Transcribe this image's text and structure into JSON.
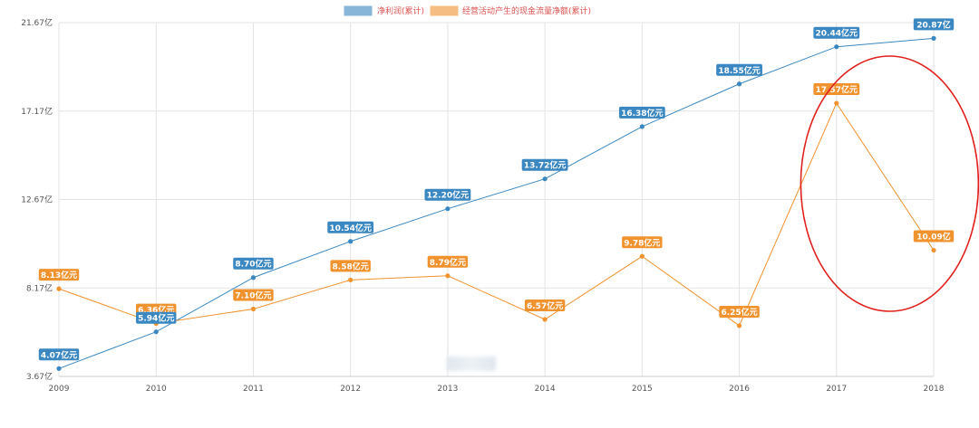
{
  "chart_data": {
    "type": "line",
    "title": "",
    "xlabel": "",
    "ylabel": "",
    "categories": [
      "2009",
      "2010",
      "2011",
      "2012",
      "2013",
      "2014",
      "2015",
      "2016",
      "2017",
      "2018"
    ],
    "y_ticks": [
      "3.67亿",
      "8.17亿",
      "12.67亿",
      "17.17亿",
      "21.67亿"
    ],
    "y_tick_values": [
      3.67,
      8.17,
      12.67,
      17.17,
      21.67
    ],
    "ylim": [
      3.67,
      21.67
    ],
    "grid": true,
    "legend_position": "top-center",
    "series": [
      {
        "name": "净利润(累计)",
        "color": "#3a87c1",
        "values": [
          4.07,
          5.94,
          8.7,
          10.54,
          12.2,
          13.72,
          16.38,
          18.55,
          20.44,
          20.87
        ],
        "labels": [
          "4.07亿元",
          "5.94亿元",
          "8.70亿元",
          "10.54亿元",
          "12.20亿元",
          "13.72亿元",
          "16.38亿元",
          "18.55亿元",
          "20.44亿元",
          "20.87亿"
        ]
      },
      {
        "name": "经营活动产生的现金流量净额(累计)",
        "color": "#f0922e",
        "values": [
          8.13,
          6.36,
          7.1,
          8.58,
          8.79,
          6.57,
          9.78,
          6.25,
          17.57,
          10.09
        ],
        "labels": [
          "8.13亿元",
          "6.36亿元",
          "7.10亿元",
          "8.58亿元",
          "8.79亿元",
          "6.57亿元",
          "9.78亿元",
          "6.25亿元",
          "17.57亿元",
          "10.09亿"
        ]
      }
    ],
    "annotations": [
      {
        "type": "ellipse",
        "color": "#e0201c",
        "around": [
          "2017",
          "2018"
        ]
      }
    ]
  }
}
